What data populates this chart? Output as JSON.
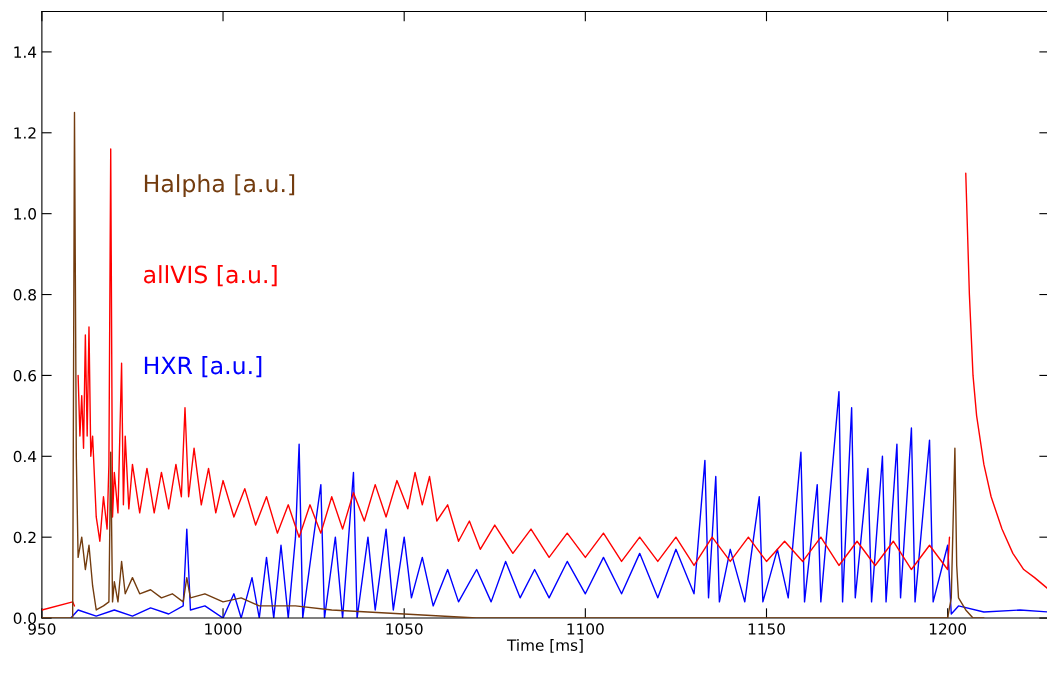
{
  "chart_data": {
    "type": "line",
    "xlabel": "Time [ms]",
    "xlim": [
      950,
      1228
    ],
    "xticks": [
      950,
      1000,
      1050,
      1100,
      1150,
      1200
    ],
    "ylim": [
      0,
      1.5
    ],
    "yticks": [
      {
        "value": 0,
        "label": "0.0"
      },
      {
        "value": 0.2,
        "label": "0.2"
      },
      {
        "value": 0.4,
        "label": "0.4"
      },
      {
        "value": 0.6,
        "label": "0.6"
      },
      {
        "value": 0.8,
        "label": "0.8"
      },
      {
        "value": 1.0,
        "label": "1.0"
      },
      {
        "value": 1.2,
        "label": "1.2"
      },
      {
        "value": 1.4,
        "label": "1.4"
      }
    ],
    "grid": false,
    "legend": false,
    "marker": "none",
    "line_style": "solid",
    "series": [
      {
        "name": "HXR [a.u.]",
        "color": "#0000ff",
        "x": [
          958,
          960,
          965,
          970,
          975,
          980,
          985,
          989,
          990,
          991,
          995,
          1000,
          1003,
          1005,
          1008,
          1010,
          1012,
          1014,
          1016,
          1018,
          1020,
          1021,
          1022,
          1025,
          1027,
          1028,
          1031,
          1033,
          1036,
          1037,
          1040,
          1042,
          1045,
          1047,
          1050,
          1052,
          1055,
          1058,
          1062,
          1065,
          1070,
          1074,
          1078,
          1082,
          1086,
          1090,
          1095,
          1100,
          1105,
          1110,
          1115,
          1120,
          1125,
          1130,
          1133,
          1134,
          1136,
          1137,
          1140,
          1144,
          1148,
          1149,
          1153,
          1156,
          1159.5,
          1160.5,
          1164,
          1165,
          1170,
          1171,
          1173.5,
          1174.5,
          1178,
          1179,
          1182,
          1183,
          1186,
          1187,
          1190,
          1191,
          1195,
          1196,
          1200,
          1201,
          1203,
          1210,
          1220,
          1228
        ],
        "values": [
          0.0,
          0.02,
          0.005,
          0.02,
          0.005,
          0.025,
          0.01,
          0.03,
          0.22,
          0.02,
          0.03,
          0.0,
          0.06,
          0.0,
          0.1,
          0.0,
          0.15,
          0.0,
          0.18,
          0.0,
          0.2,
          0.43,
          0.0,
          0.2,
          0.33,
          0.0,
          0.2,
          0.0,
          0.36,
          0.0,
          0.2,
          0.02,
          0.22,
          0.02,
          0.2,
          0.05,
          0.15,
          0.03,
          0.12,
          0.04,
          0.12,
          0.04,
          0.14,
          0.05,
          0.12,
          0.05,
          0.14,
          0.06,
          0.15,
          0.06,
          0.16,
          0.05,
          0.17,
          0.06,
          0.39,
          0.05,
          0.35,
          0.04,
          0.17,
          0.04,
          0.3,
          0.04,
          0.17,
          0.05,
          0.41,
          0.04,
          0.33,
          0.04,
          0.56,
          0.04,
          0.52,
          0.05,
          0.37,
          0.04,
          0.4,
          0.04,
          0.43,
          0.05,
          0.47,
          0.04,
          0.44,
          0.04,
          0.18,
          0.01,
          0.03,
          0.015,
          0.02,
          0.015
        ]
      },
      {
        "name": "allVIS [a.u.]",
        "color": "#ff0000",
        "x": [
          950,
          958.5,
          959,
          959.5,
          960,
          960.5,
          961,
          961.5,
          962,
          962.5,
          963,
          963.5,
          964,
          965,
          966,
          967,
          968,
          968.5,
          969,
          969.5,
          970,
          971,
          972,
          972.5,
          973,
          974,
          975,
          977,
          979,
          981,
          983,
          985,
          987,
          988.5,
          989.5,
          990.5,
          992,
          994,
          996,
          998,
          1000,
          1003,
          1006,
          1009,
          1012,
          1015,
          1018,
          1021,
          1024,
          1027,
          1030,
          1033,
          1036,
          1039,
          1042,
          1045,
          1048,
          1051,
          1053,
          1055,
          1057,
          1059,
          1062,
          1065,
          1068,
          1071,
          1075,
          1080,
          1085,
          1090,
          1095,
          1100,
          1105,
          1110,
          1115,
          1120,
          1125,
          1130,
          1135,
          1140,
          1145,
          1150,
          1155,
          1160,
          1165,
          1170,
          1175,
          1180,
          1185,
          1190,
          1195,
          1200,
          1200.5,
          1201.5,
          1204,
          1205,
          1206,
          1207,
          1208,
          1210,
          1212,
          1215,
          1218,
          1221,
          1224,
          1228
        ],
        "values": [
          0.02,
          0.04,
          0.03,
          null,
          0.6,
          0.45,
          0.55,
          0.42,
          0.7,
          0.45,
          0.72,
          0.4,
          0.45,
          0.25,
          0.19,
          0.3,
          0.22,
          0.38,
          1.16,
          0.25,
          0.36,
          0.26,
          0.63,
          0.28,
          0.45,
          0.27,
          0.38,
          0.26,
          0.37,
          0.26,
          0.36,
          0.27,
          0.38,
          0.3,
          0.52,
          0.3,
          0.42,
          0.28,
          0.37,
          0.26,
          0.34,
          0.25,
          0.32,
          0.23,
          0.3,
          0.21,
          0.28,
          0.2,
          0.28,
          0.21,
          0.3,
          0.22,
          0.31,
          0.24,
          0.33,
          0.25,
          0.34,
          0.27,
          0.36,
          0.28,
          0.35,
          0.24,
          0.28,
          0.19,
          0.24,
          0.17,
          0.23,
          0.16,
          0.22,
          0.15,
          0.21,
          0.15,
          0.21,
          0.14,
          0.2,
          0.14,
          0.2,
          0.13,
          0.2,
          0.14,
          0.2,
          0.14,
          0.19,
          0.14,
          0.2,
          0.13,
          0.19,
          0.13,
          0.19,
          0.12,
          0.18,
          0.12,
          0.2,
          null,
          null,
          1.1,
          0.8,
          0.6,
          0.5,
          0.38,
          0.3,
          0.22,
          0.16,
          0.12,
          0.1,
          0.07
        ]
      },
      {
        "name": "Halpha [a.u.]",
        "color": "#733c0f",
        "x": [
          950,
          958.5,
          959,
          959.5,
          960,
          961,
          962,
          963,
          964,
          965,
          967,
          968.5,
          969,
          969.5,
          970,
          971,
          972,
          973,
          975,
          977,
          980,
          983,
          986,
          989,
          990,
          991,
          995,
          1000,
          1005,
          1010,
          1020,
          1030,
          1040,
          1050,
          1060,
          1070,
          1200,
          1201,
          1202,
          1202.5,
          1203,
          1205,
          1207,
          1210
        ],
        "values": [
          0.0,
          0.0,
          1.25,
          0.4,
          0.15,
          0.2,
          0.12,
          0.18,
          0.08,
          0.02,
          0.03,
          0.04,
          0.41,
          0.04,
          0.09,
          0.04,
          0.14,
          0.06,
          0.1,
          0.06,
          0.07,
          0.05,
          0.06,
          0.04,
          0.1,
          0.05,
          0.06,
          0.04,
          0.05,
          0.03,
          0.03,
          0.02,
          0.015,
          0.01,
          0.005,
          0.0,
          0.0,
          0.05,
          0.42,
          0.13,
          0.05,
          0.02,
          0.0,
          0.0
        ]
      }
    ]
  }
}
